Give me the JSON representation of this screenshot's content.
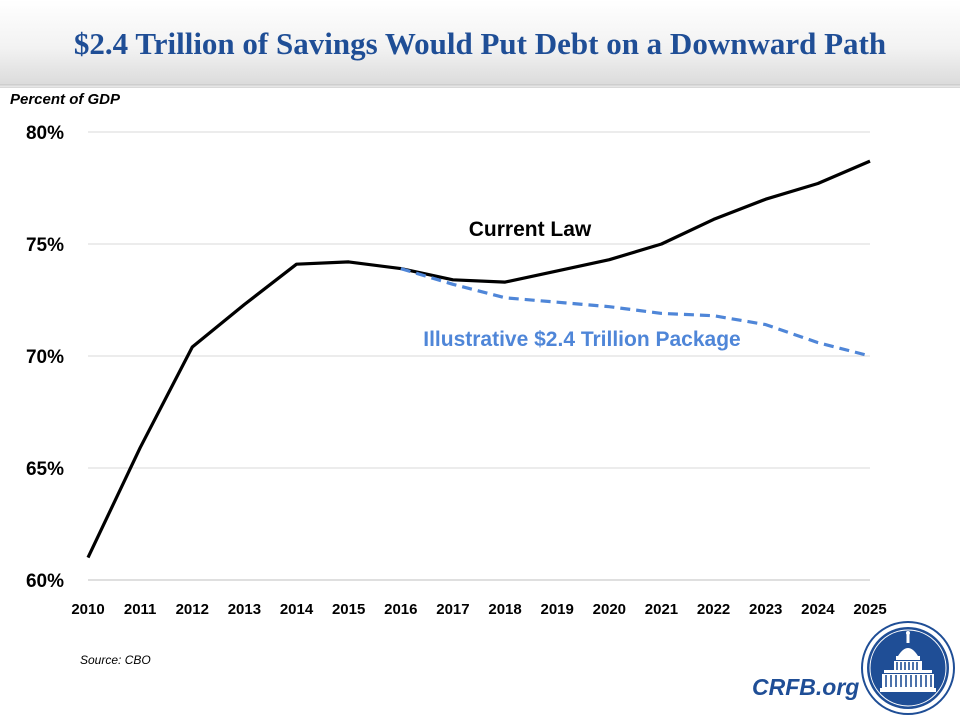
{
  "header": {
    "title": "$2.4 Trillion of Savings Would Put Debt on a Downward Path"
  },
  "footer": {
    "source": "Source: CBO",
    "brand": "CRFB.org",
    "logo_icon": "capitol-dome-seal-icon"
  },
  "colors": {
    "title": "#1f4e96",
    "current_law": "#000000",
    "package": "#4f86d8",
    "grid": "#d9d9d9"
  },
  "chart_data": {
    "type": "line",
    "title": "$2.4 Trillion of Savings Would Put Debt on a Downward Path",
    "xlabel": "",
    "ylabel": "Percent of GDP",
    "ylim": [
      60,
      80
    ],
    "yticks": [
      "60%",
      "65%",
      "70%",
      "75%",
      "80%"
    ],
    "x": [
      "2010",
      "2011",
      "2012",
      "2013",
      "2014",
      "2015",
      "2016",
      "2017",
      "2018",
      "2019",
      "2020",
      "2021",
      "2022",
      "2023",
      "2024",
      "2025"
    ],
    "grid": true,
    "series": [
      {
        "name": "Current Law",
        "style": "solid",
        "values": [
          61.0,
          65.9,
          70.4,
          72.3,
          74.1,
          74.2,
          73.9,
          73.4,
          73.3,
          73.8,
          74.3,
          75.0,
          76.1,
          77.0,
          77.7,
          78.7
        ]
      },
      {
        "name": "Illustrative $2.4 Trillion Package",
        "style": "dashed",
        "values": [
          null,
          null,
          null,
          null,
          null,
          null,
          73.9,
          73.2,
          72.6,
          72.4,
          72.2,
          71.9,
          71.8,
          71.4,
          70.6,
          70.0
        ]
      }
    ]
  }
}
